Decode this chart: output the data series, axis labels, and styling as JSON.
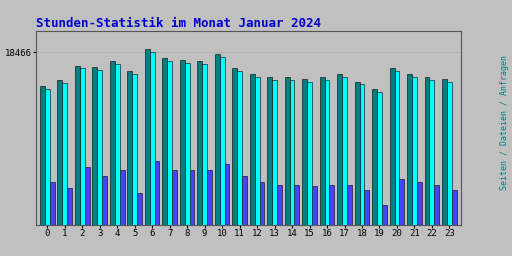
{
  "title": "Stunden-Statistik im Monat Januar 2024",
  "ytick_label": "18466",
  "background_color": "#c0c0c0",
  "title_color": "#0000cc",
  "right_label": "Seiten / Dateien / Anfragen",
  "right_label_color": "#008080",
  "hours": [
    0,
    1,
    2,
    3,
    4,
    5,
    6,
    7,
    8,
    9,
    10,
    11,
    12,
    13,
    14,
    15,
    16,
    17,
    18,
    19,
    20,
    21,
    22,
    23
  ],
  "seiten": [
    17200,
    17400,
    17900,
    17850,
    18050,
    17700,
    18466,
    18150,
    18100,
    18050,
    18300,
    17800,
    17600,
    17500,
    17500,
    17450,
    17500,
    17600,
    17350,
    17100,
    17800,
    17600,
    17500,
    17450
  ],
  "dateien": [
    17300,
    17500,
    18000,
    17950,
    18150,
    17800,
    18566,
    18250,
    18200,
    18150,
    18400,
    17900,
    17700,
    17600,
    17600,
    17550,
    17600,
    17700,
    17450,
    17200,
    17900,
    17700,
    17600,
    17550
  ],
  "anfragen": [
    14000,
    13800,
    14500,
    14200,
    14400,
    13600,
    14700,
    14400,
    14400,
    14400,
    14600,
    14200,
    14000,
    13900,
    13900,
    13850,
    13900,
    13900,
    13700,
    13200,
    14100,
    14000,
    13900,
    13700
  ],
  "color_seiten": "#00ffff",
  "color_dateien": "#008080",
  "color_anfragen": "#4444ff",
  "bar_edge_color": "#000000",
  "ylim_min": 12500,
  "ylim_max": 19200,
  "ytick_val": 18466,
  "bar_width": 0.28
}
